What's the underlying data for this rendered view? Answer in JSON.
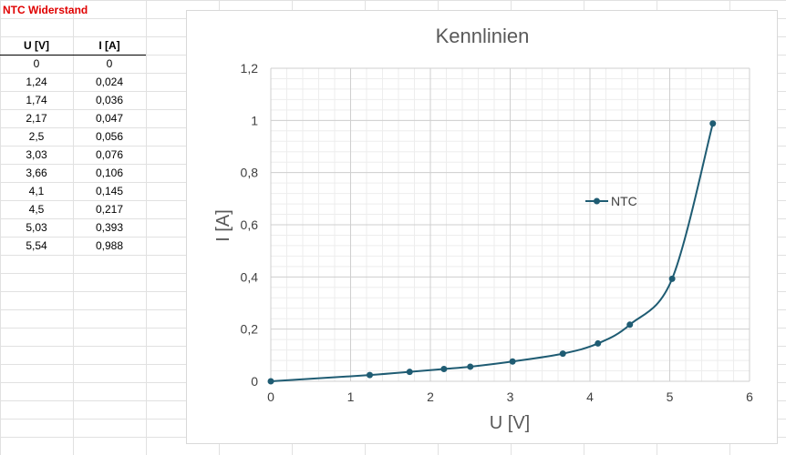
{
  "sheet": {
    "title": "NTC Widerstand",
    "columns": [
      "U [V]",
      "I [A]"
    ],
    "rows": [
      [
        "0",
        "0"
      ],
      [
        "1,24",
        "0,024"
      ],
      [
        "1,74",
        "0,036"
      ],
      [
        "2,17",
        "0,047"
      ],
      [
        "2,5",
        "0,056"
      ],
      [
        "3,03",
        "0,076"
      ],
      [
        "3,66",
        "0,106"
      ],
      [
        "4,1",
        "0,145"
      ],
      [
        "4,5",
        "0,217"
      ],
      [
        "5,03",
        "0,393"
      ],
      [
        "5,54",
        "0,988"
      ]
    ]
  },
  "chart_data": {
    "type": "scatter",
    "title": "Kennlinien",
    "xlabel": "U [V]",
    "ylabel": "I [A]",
    "xlim": [
      0,
      6
    ],
    "ylim": [
      0,
      1.2
    ],
    "x_ticks": [
      "0",
      "1",
      "2",
      "3",
      "4",
      "5",
      "6"
    ],
    "y_ticks": [
      "0",
      "0,2",
      "0,4",
      "0,6",
      "0,8",
      "1",
      "1,2"
    ],
    "grid": true,
    "legend": "right",
    "smooth": true,
    "series": [
      {
        "name": "NTC",
        "color": "#1f5c73",
        "x": [
          0,
          1.24,
          1.74,
          2.17,
          2.5,
          3.03,
          3.66,
          4.1,
          4.5,
          5.03,
          5.54
        ],
        "y": [
          0,
          0.024,
          0.036,
          0.047,
          0.056,
          0.076,
          0.106,
          0.145,
          0.217,
          0.393,
          0.988
        ]
      }
    ]
  }
}
